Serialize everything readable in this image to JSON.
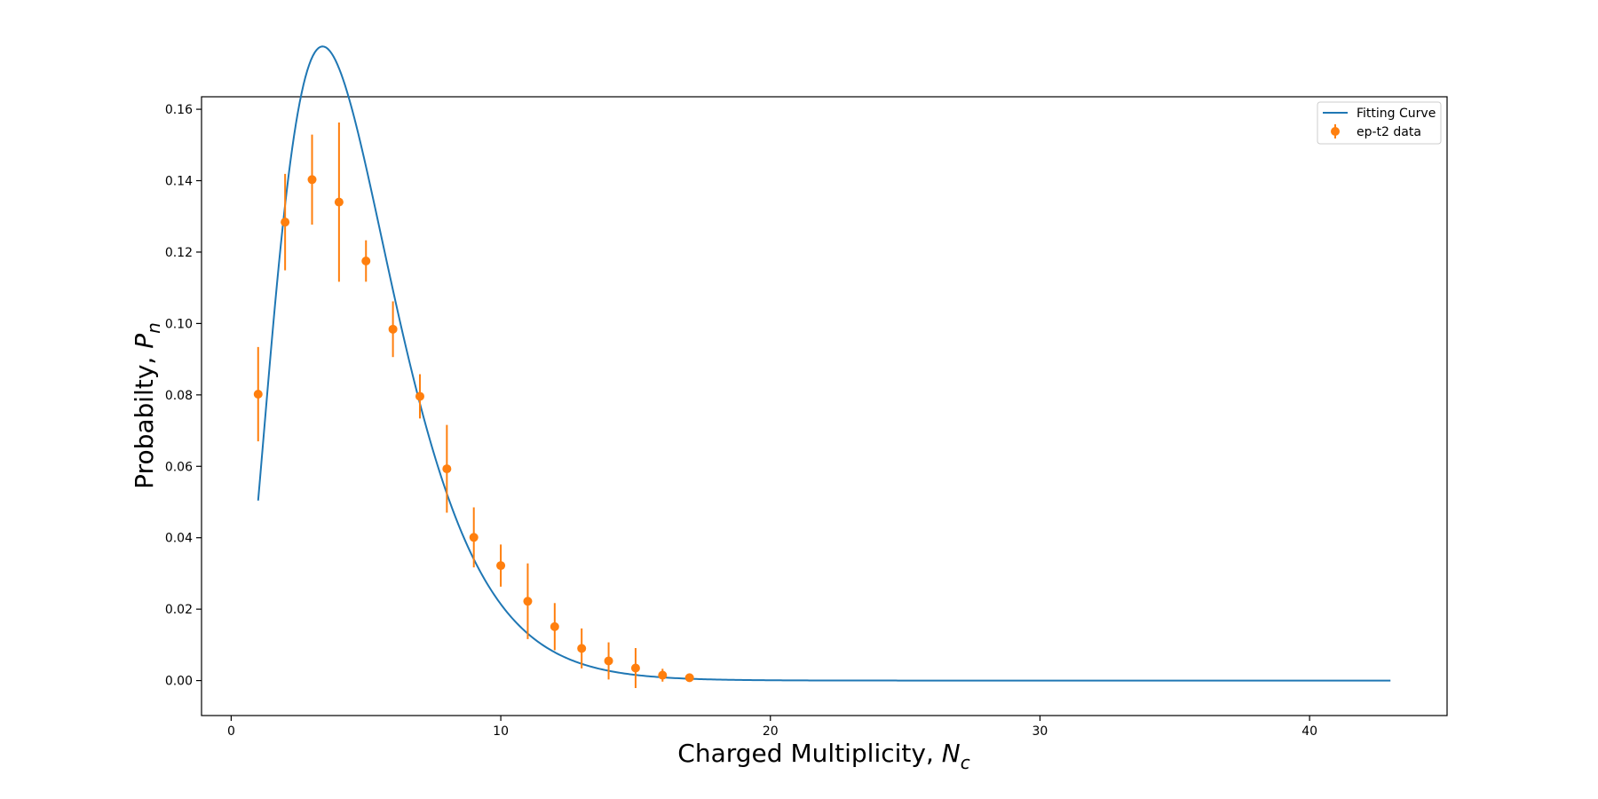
{
  "chart_data": {
    "type": "scatter",
    "xlabel_main": "Charged Multiplicity, ",
    "xlabel_symbol": "N",
    "xlabel_sub": "c",
    "ylabel_main": "Probabilty, ",
    "ylabel_symbol": "P",
    "ylabel_sub": "n",
    "xlim": [
      -1.1,
      45.1
    ],
    "ylim": [
      -0.0098,
      0.1635
    ],
    "xticks": [
      0,
      10,
      20,
      30,
      40
    ],
    "yticks": [
      0.0,
      0.02,
      0.04,
      0.06,
      0.08,
      0.1,
      0.12,
      0.14,
      0.16
    ],
    "ytick_labels": [
      "0.00",
      "0.02",
      "0.04",
      "0.06",
      "0.08",
      "0.10",
      "0.12",
      "0.14",
      "0.16"
    ],
    "grid": false,
    "legend_position": "top-right",
    "colors": {
      "curve": "#1f77b4",
      "data": "#ff7f0e"
    },
    "series": [
      {
        "name": "Fitting Curve",
        "kind": "line",
        "model": "gamma",
        "params": {
          "k": 3.44,
          "theta": 1.39,
          "scale": 1.0
        },
        "x_range": [
          1,
          43
        ]
      },
      {
        "name": "ep-t2 data",
        "kind": "errorbar",
        "x": [
          1,
          2,
          3,
          4,
          5,
          6,
          7,
          8,
          9,
          10,
          11,
          12,
          13,
          14,
          15,
          16,
          17
        ],
        "y": [
          0.0802,
          0.1284,
          0.1403,
          0.134,
          0.1175,
          0.0984,
          0.0796,
          0.0593,
          0.0401,
          0.0322,
          0.0222,
          0.0151,
          0.009,
          0.0055,
          0.0035,
          0.0015,
          0.0008
        ],
        "yerr": [
          0.0132,
          0.0135,
          0.0126,
          0.0223,
          0.0058,
          0.0078,
          0.0062,
          0.0123,
          0.0084,
          0.0059,
          0.0106,
          0.0066,
          0.0056,
          0.0052,
          0.0056,
          0.0018,
          0.0005
        ]
      }
    ]
  }
}
